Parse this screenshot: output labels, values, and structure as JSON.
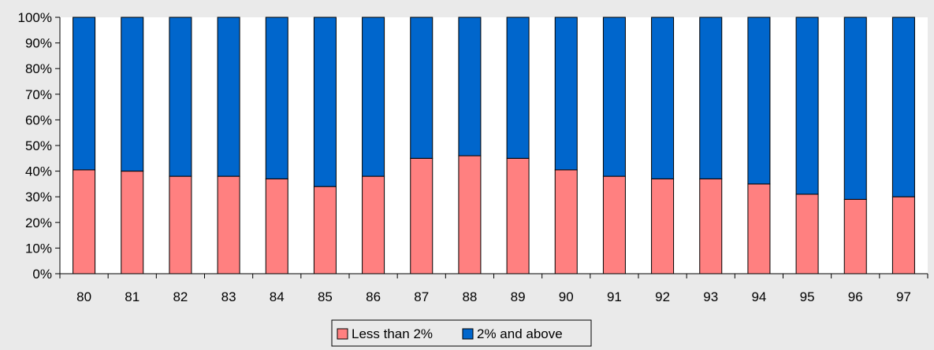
{
  "chart_data": {
    "type": "bar",
    "stacked": true,
    "normalized": true,
    "categories": [
      "80",
      "81",
      "82",
      "83",
      "84",
      "85",
      "86",
      "87",
      "88",
      "89",
      "90",
      "91",
      "92",
      "93",
      "94",
      "95",
      "96",
      "97"
    ],
    "series": [
      {
        "name": "Less than 2%",
        "color": "#ff8080",
        "values": [
          40.5,
          40,
          38,
          38,
          37,
          34,
          38,
          45,
          46,
          45,
          40.5,
          38,
          37,
          37,
          35,
          31,
          29,
          30
        ]
      },
      {
        "name": "2% and above",
        "color": "#0066cc",
        "values": [
          59.5,
          60,
          62,
          62,
          63,
          66,
          62,
          55,
          54,
          55,
          59.5,
          62,
          63,
          63,
          65,
          69,
          71,
          70
        ]
      }
    ],
    "ylim": [
      0,
      100
    ],
    "yticks": [
      "0%",
      "10%",
      "20%",
      "30%",
      "40%",
      "50%",
      "60%",
      "70%",
      "80%",
      "90%",
      "100%"
    ],
    "grid": false,
    "legend": "bottom",
    "plot_background": "#ffffff",
    "page_background": "#eaeaea"
  }
}
